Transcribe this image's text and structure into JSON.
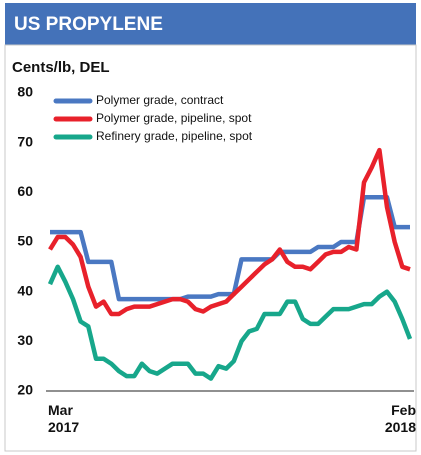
{
  "chart_data": {
    "type": "line",
    "title": "US PROPYLENE",
    "y_label": "Cents/lb, DEL",
    "categories": [
      "Mar 2017",
      null,
      null,
      null,
      null,
      null,
      null,
      null,
      null,
      null,
      null,
      null,
      null,
      null,
      null,
      null,
      null,
      null,
      null,
      null,
      null,
      null,
      null,
      null,
      null,
      null,
      null,
      null,
      null,
      null,
      null,
      null,
      null,
      null,
      null,
      null,
      null,
      null,
      null,
      null,
      null,
      null,
      null,
      null,
      null,
      null,
      null,
      "Feb 2018"
    ],
    "series": [
      {
        "name": "Polymer grade, contract",
        "color": "#4a78c2",
        "values": [
          52,
          52,
          52,
          52,
          52,
          46,
          46,
          46,
          46,
          38.5,
          38.5,
          38.5,
          38.5,
          38.5,
          38.5,
          38.5,
          38.5,
          38.5,
          39,
          39,
          39,
          39,
          39.5,
          39.5,
          39.5,
          46.5,
          46.5,
          46.5,
          46.5,
          46.5,
          48,
          48,
          48,
          48,
          48,
          49,
          49,
          49,
          50,
          50,
          50,
          59,
          59,
          59,
          59,
          53,
          53,
          53
        ]
      },
      {
        "name": "Polymer grade, pipeline, spot",
        "color": "#e8212b",
        "values": [
          48.5,
          51,
          51,
          49.5,
          47,
          41,
          37,
          38,
          35.5,
          35.5,
          36.5,
          37,
          37,
          37,
          37.5,
          38,
          38.5,
          38.5,
          38,
          36.5,
          36,
          37,
          37.5,
          38,
          39.5,
          41,
          42.5,
          44,
          45.5,
          46.5,
          48.5,
          46,
          45,
          45,
          44.5,
          46,
          47.5,
          48,
          48,
          49,
          48.5,
          62,
          65,
          68.5,
          57,
          50,
          45,
          44.5
        ]
      },
      {
        "name": "Refinery grade, pipeline, spot",
        "color": "#17a78b",
        "values": [
          41.5,
          45,
          42,
          38.5,
          34,
          33,
          26.5,
          26.5,
          25.5,
          24,
          23,
          23,
          25.5,
          24,
          23.5,
          24.5,
          25.5,
          25.5,
          25.5,
          23.5,
          23.5,
          22.5,
          25,
          24.5,
          26,
          30,
          32,
          32.5,
          35.5,
          35.5,
          35.5,
          38,
          38,
          34.5,
          33.5,
          33.5,
          35,
          36.5,
          36.5,
          36.5,
          37,
          37.5,
          37.5,
          39,
          40,
          38,
          34.5,
          30.5
        ]
      }
    ],
    "ylim": [
      20,
      80
    ],
    "yticks": [
      20,
      30,
      40,
      50,
      60,
      70,
      80
    ],
    "grid": false,
    "legend": "upper left",
    "header_color": "#4472b9"
  }
}
